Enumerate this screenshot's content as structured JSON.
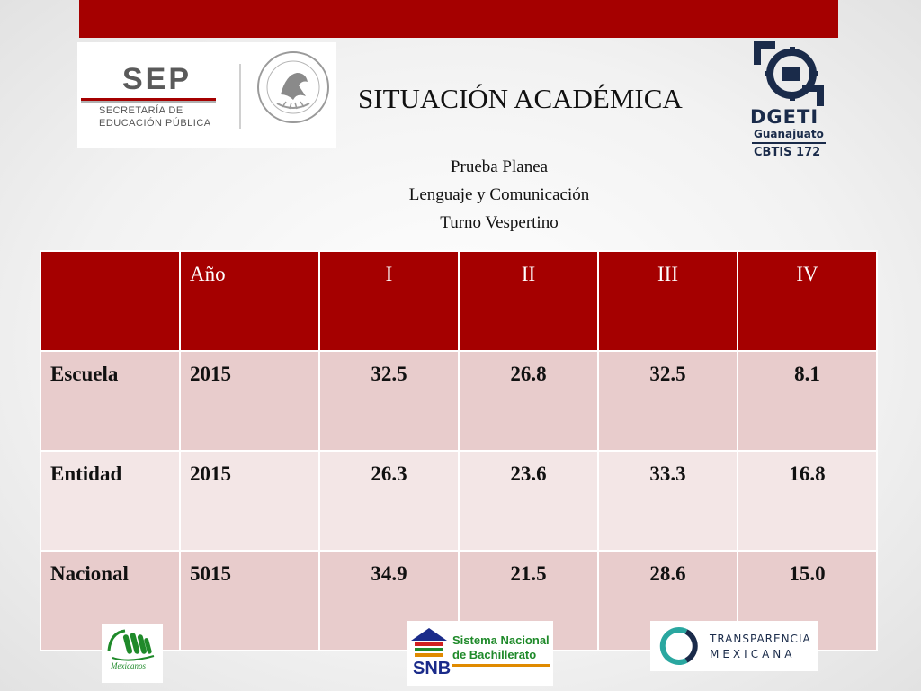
{
  "slide": {
    "title": "SITUACIÓN ACADÉMICA",
    "subtitle_lines": [
      "Prueba Planea",
      "Lenguaje y Comunicación",
      "Turno Vespertino"
    ]
  },
  "logos": {
    "sep": {
      "name": "SEP",
      "line1": "SECRETARÍA DE",
      "line2": "EDUCACIÓN PÚBLICA"
    },
    "dgeti": {
      "name": "DGETI",
      "state": "Guanajuato",
      "school": "CBTIS 172"
    },
    "mexicanos": {
      "name": "Mexicanos"
    },
    "snb": {
      "line1": "Sistema Nacional",
      "line2": "de Bachillerato",
      "abbr": "SNB"
    },
    "transparencia": {
      "line1": "TRANSPARENCIA",
      "line2": "MEXICANA"
    }
  },
  "table": {
    "headers": [
      "",
      "Año",
      "I",
      "II",
      "III",
      "IV"
    ],
    "rows": [
      [
        "Escuela",
        "2015",
        "32.5",
        "26.8",
        "32.5",
        "8.1"
      ],
      [
        "Entidad",
        "2015",
        "26.3",
        "23.6",
        "33.3",
        "16.8"
      ],
      [
        "Nacional",
        "5015",
        "34.9",
        "21.5",
        "28.6",
        "15.0"
      ]
    ]
  },
  "colors": {
    "accent_red": "#a50000",
    "row_odd": "#e8cccc",
    "row_even": "#f3e6e6",
    "dgeti_navy": "#1a2b4a",
    "snb_green": "#1f8a2a"
  },
  "icons": {
    "seal": "mexican-coat-of-arms-icon",
    "dgeti_mark": "dgeti-gear-icon",
    "mexicanos_mark": "mexicanos-hand-icon",
    "snb_mark": "snb-building-icon",
    "transparencia_mark": "transparencia-ring-icon"
  }
}
